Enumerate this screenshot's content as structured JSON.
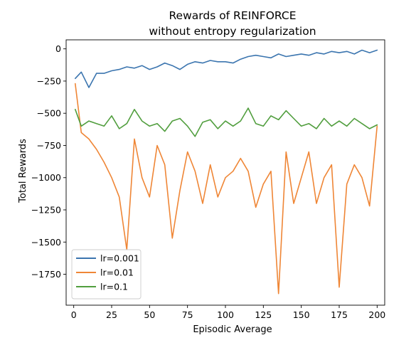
{
  "chart_data": {
    "type": "line",
    "title": "Rewards of REINFORCE",
    "subtitle": "without entropy regularization",
    "xlabel": "Episodic Average",
    "ylabel": "Total Rewards",
    "xlim": [
      -5,
      205
    ],
    "ylim": [
      -1990,
      70
    ],
    "xticks": [
      0,
      25,
      50,
      75,
      100,
      125,
      150,
      175,
      200
    ],
    "xtick_labels": [
      "0",
      "25",
      "50",
      "75",
      "100",
      "125",
      "150",
      "175",
      "200"
    ],
    "yticks": [
      0,
      -250,
      -500,
      -750,
      -1000,
      -1250,
      -1500,
      -1750
    ],
    "ytick_labels": [
      "0",
      "−250",
      "−500",
      "−750",
      "−1000",
      "−1250",
      "−1500",
      "−1750"
    ],
    "grid": false,
    "legend_position": "lower-left",
    "x": [
      1,
      5,
      10,
      15,
      20,
      25,
      30,
      35,
      40,
      45,
      50,
      55,
      60,
      65,
      70,
      75,
      80,
      85,
      90,
      95,
      100,
      105,
      110,
      115,
      120,
      125,
      130,
      135,
      140,
      145,
      150,
      155,
      160,
      165,
      170,
      175,
      180,
      185,
      190,
      195,
      200
    ],
    "series": [
      {
        "name": "lr=0.001",
        "color": "#3b75af",
        "values": [
          -230,
          -180,
          -300,
          -190,
          -190,
          -170,
          -160,
          -140,
          -150,
          -130,
          -160,
          -140,
          -110,
          -130,
          -160,
          -120,
          -100,
          -110,
          -90,
          -100,
          -100,
          -110,
          -80,
          -60,
          -50,
          -60,
          -70,
          -40,
          -60,
          -50,
          -40,
          -50,
          -30,
          -40,
          -20,
          -30,
          -20,
          -40,
          -10,
          -30,
          -10
        ]
      },
      {
        "name": "lr=0.01",
        "color": "#ef8636",
        "values": [
          -270,
          -650,
          -700,
          -780,
          -880,
          -1000,
          -1150,
          -1560,
          -700,
          -1000,
          -1150,
          -750,
          -900,
          -1470,
          -1100,
          -800,
          -950,
          -1200,
          -900,
          -1150,
          -1000,
          -950,
          -850,
          -950,
          -1230,
          -1050,
          -950,
          -1900,
          -800,
          -1200,
          -1000,
          -800,
          -1200,
          -1000,
          -900,
          -1850,
          -1050,
          -900,
          -1000,
          -1220,
          -600
        ]
      },
      {
        "name": "lr=0.1",
        "color": "#519e3e",
        "values": [
          -470,
          -600,
          -560,
          -580,
          -600,
          -520,
          -620,
          -580,
          -470,
          -560,
          -600,
          -580,
          -640,
          -560,
          -540,
          -600,
          -680,
          -570,
          -550,
          -620,
          -560,
          -600,
          -560,
          -460,
          -580,
          -600,
          -520,
          -550,
          -480,
          -540,
          -600,
          -580,
          -620,
          -540,
          -600,
          -560,
          -600,
          -540,
          -580,
          -620,
          -590
        ]
      }
    ]
  }
}
